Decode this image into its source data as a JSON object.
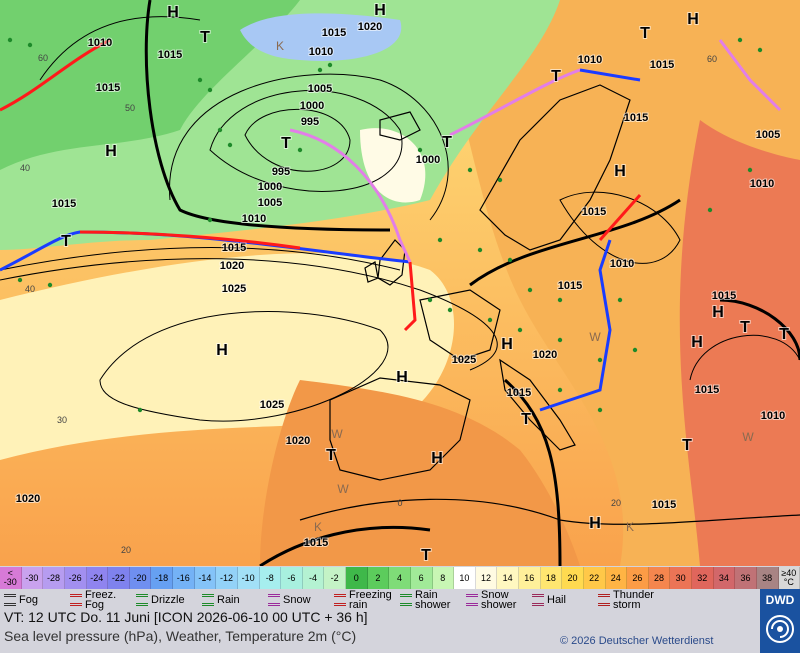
{
  "map": {
    "pressure_labels": [
      "1010",
      "1015",
      "1015",
      "1010",
      "1015",
      "1020",
      "1005",
      "1000",
      "995",
      "995",
      "1000",
      "1000",
      "1005",
      "1010",
      "1015",
      "1015",
      "1020",
      "1025",
      "1010",
      "1015",
      "1015",
      "1005",
      "1010",
      "1015",
      "1010",
      "1015",
      "1015",
      "1025",
      "1020",
      "1015",
      "1015",
      "1010",
      "1025",
      "1020",
      "1015",
      "1015",
      "1020"
    ],
    "pressure_centers": [
      "H",
      "T",
      "H",
      "H",
      "T",
      "T",
      "T",
      "T",
      "H",
      "H",
      "T",
      "H",
      "H",
      "H",
      "T",
      "H",
      "H",
      "T",
      "H",
      "T",
      "T",
      "T",
      "H",
      "T"
    ],
    "graticule_labels": [
      "60",
      "50",
      "40",
      "40",
      "30",
      "20",
      "0",
      "20",
      "60"
    ],
    "air_mass_labels": [
      "K",
      "W",
      "W",
      "K",
      "K",
      "W",
      "W"
    ]
  },
  "color_scale": [
    {
      "label": "< -30",
      "color": "#d77ad7"
    },
    {
      "label": "-30",
      "color": "#c9a2ee"
    },
    {
      "label": "-28",
      "color": "#b69cf0"
    },
    {
      "label": "-26",
      "color": "#a28ff0"
    },
    {
      "label": "-24",
      "color": "#8f84ef"
    },
    {
      "label": "-22",
      "color": "#7f82ee"
    },
    {
      "label": "-20",
      "color": "#6f8ff0"
    },
    {
      "label": "-18",
      "color": "#66a0f2"
    },
    {
      "label": "-16",
      "color": "#74b2f6"
    },
    {
      "label": "-14",
      "color": "#84c3f8"
    },
    {
      "label": "-12",
      "color": "#93d2f8"
    },
    {
      "label": "-10",
      "color": "#a2e0f7"
    },
    {
      "label": "-8",
      "color": "#a6eeee"
    },
    {
      "label": "-6",
      "color": "#a8f0df"
    },
    {
      "label": "-4",
      "color": "#b4f2d2"
    },
    {
      "label": "-2",
      "color": "#c4f3c6"
    },
    {
      "label": "0",
      "color": "#3fb84a"
    },
    {
      "label": "2",
      "color": "#5ccc5c"
    },
    {
      "label": "4",
      "color": "#7fdc78"
    },
    {
      "label": "6",
      "color": "#a1ea98"
    },
    {
      "label": "8",
      "color": "#c8f6b4"
    },
    {
      "label": "10",
      "color": "#ffffff"
    },
    {
      "label": "12",
      "color": "#fffbe2"
    },
    {
      "label": "14",
      "color": "#fff8c0"
    },
    {
      "label": "16",
      "color": "#fff09a"
    },
    {
      "label": "18",
      "color": "#ffe670"
    },
    {
      "label": "20",
      "color": "#ffda50"
    },
    {
      "label": "22",
      "color": "#ffc848"
    },
    {
      "label": "24",
      "color": "#ffb444"
    },
    {
      "label": "26",
      "color": "#fc9c46"
    },
    {
      "label": "28",
      "color": "#f5864e"
    },
    {
      "label": "30",
      "color": "#ec7456"
    },
    {
      "label": "32",
      "color": "#e0665c"
    },
    {
      "label": "34",
      "color": "#d2676a"
    },
    {
      "label": "36",
      "color": "#c07276"
    },
    {
      "label": "38",
      "color": "#a88484"
    },
    {
      "label": "≥40 °C",
      "color": "#d8d8d8"
    }
  ],
  "weather_legend": [
    "Fog",
    "Freez. Fog",
    "Drizzle",
    "Rain",
    "Snow",
    "Freezing rain",
    "Rain shower",
    "Snow shower",
    "Hail",
    "Thunder storm"
  ],
  "footer": {
    "valid_time": "VT: 12 UTC Do.   11 Juni [ICON 2026-06-10   00 UTC + 36 h]",
    "description": "Sea level pressure (hPa), Weather, Temperature 2m (°C)",
    "copyright": "© 2026 Deutscher Wetterdienst",
    "logo": "DWD"
  }
}
